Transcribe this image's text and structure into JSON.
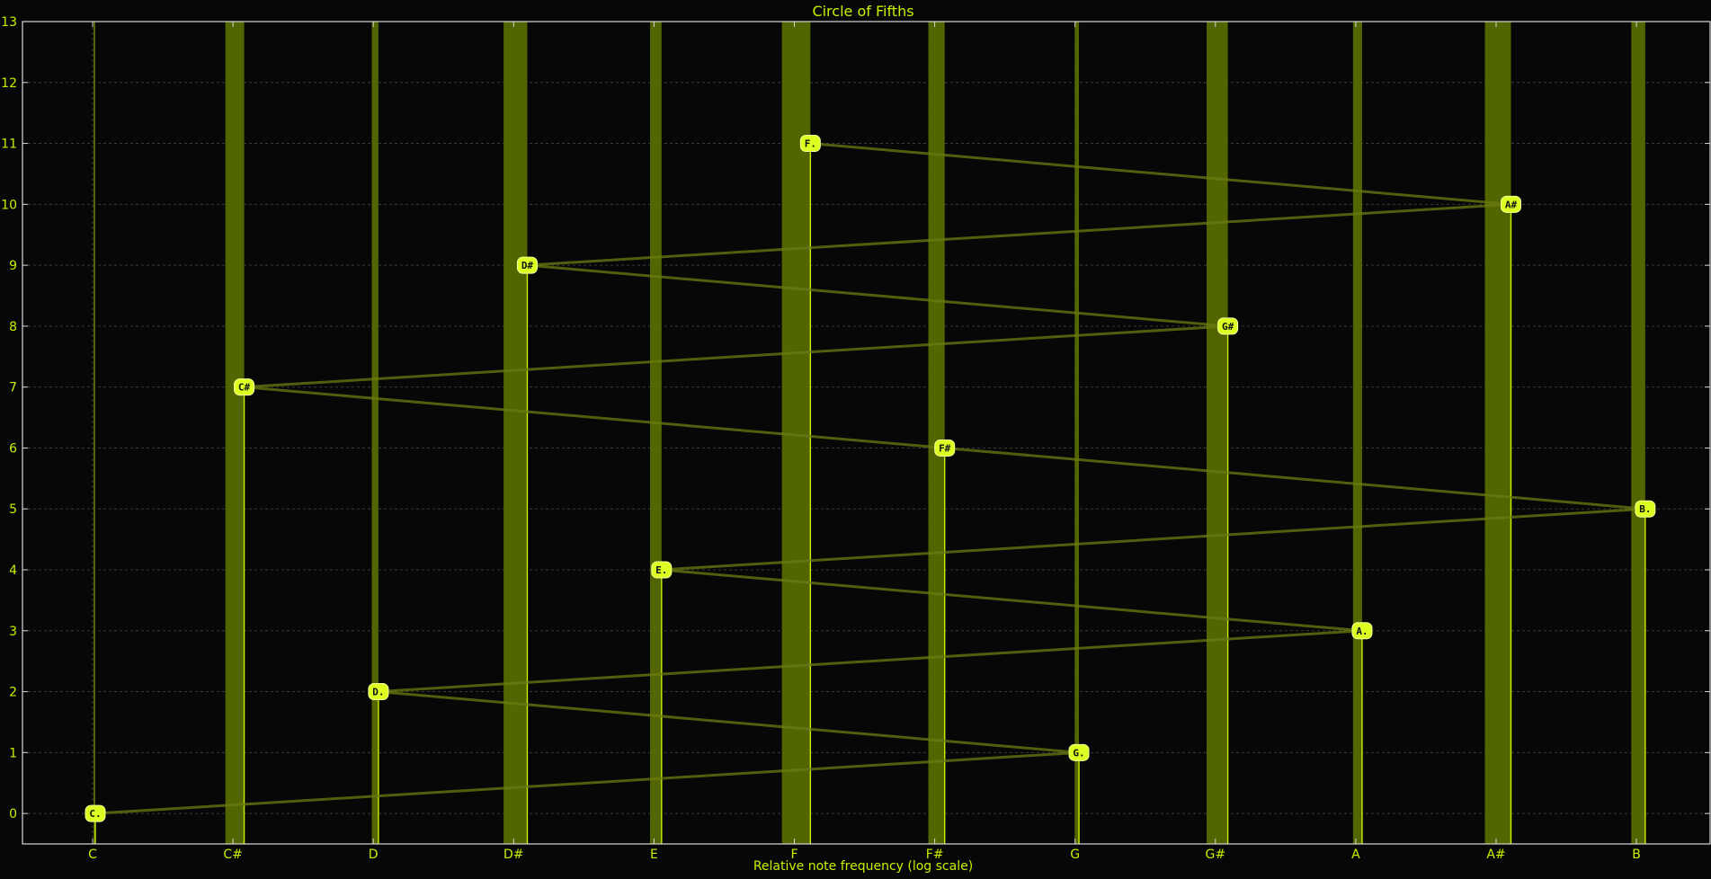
{
  "chart_data": {
    "type": "bar",
    "title": "Circle of Fifths",
    "xlabel": "Relative note frequency (log scale)",
    "ylabel": "",
    "ylim": [
      -0.5,
      13
    ],
    "y_ticks": [
      0,
      1,
      2,
      3,
      4,
      5,
      6,
      7,
      8,
      9,
      10,
      11,
      12,
      13
    ],
    "categories": [
      "C",
      "C#",
      "D",
      "D#",
      "E",
      "F",
      "F#",
      "G",
      "G#",
      "A",
      "A#",
      "B"
    ],
    "grid": true,
    "colors": {
      "background": "#070707",
      "foreground": "#ccee00",
      "bar_fill": "#556b00",
      "connector": "#6b7a10",
      "label_box": "#ddff22"
    },
    "series": [
      {
        "values": [
          0,
          7,
          2,
          9,
          4,
          11,
          6,
          1,
          8,
          3,
          10,
          5
        ],
        "labels": [
          "C.",
          "C#",
          "D.",
          "D#",
          "E.",
          "F.",
          "F#",
          "G.",
          "G#",
          "A.",
          "A#",
          "B."
        ]
      }
    ],
    "circle_order": [
      "C",
      "G",
      "D",
      "A",
      "E",
      "B",
      "F#",
      "C#",
      "G#",
      "D#",
      "A#",
      "F"
    ]
  }
}
